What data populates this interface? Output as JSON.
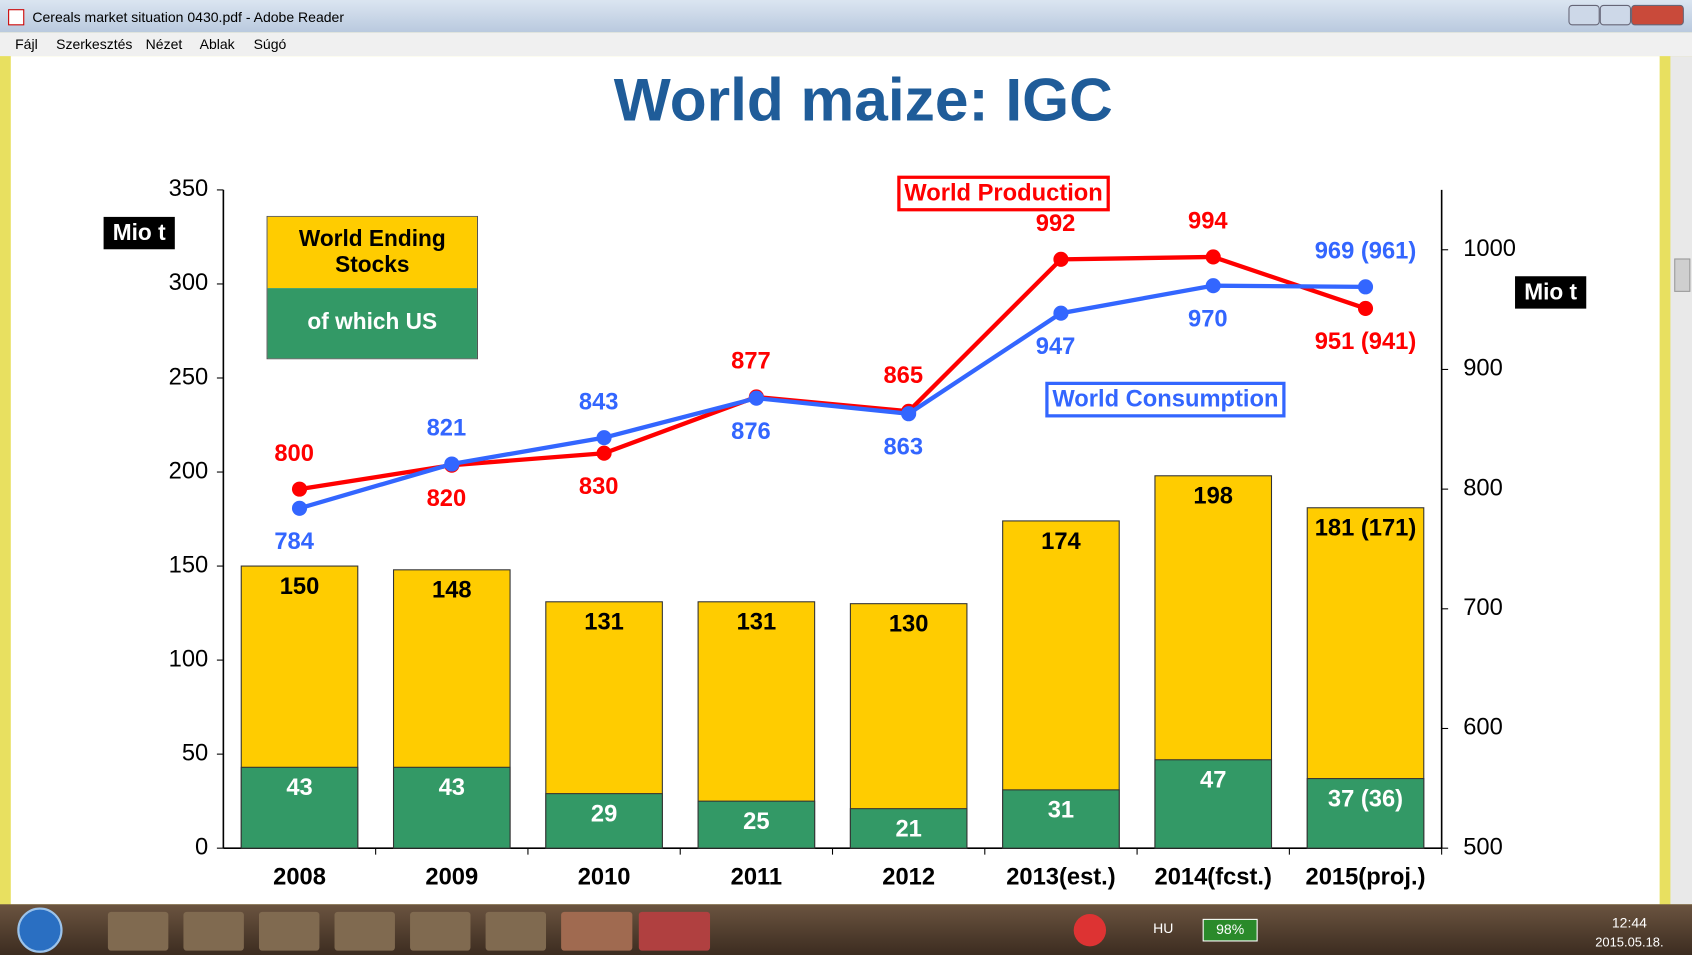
{
  "window": {
    "title": "Cereals market situation 0430.pdf - Adobe Reader",
    "menu": [
      "Fájl",
      "Szerkesztés",
      "Nézet",
      "Ablak",
      "Súgó"
    ]
  },
  "chart_data": {
    "type": "bar",
    "title": "World maize: IGC",
    "ylabel": "Mio t",
    "y2label": "Mio t",
    "categories": [
      "2008",
      "2009",
      "2010",
      "2011",
      "2012",
      "2013(est.)",
      "2014(fcst.)",
      "2015(proj.)"
    ],
    "ylim": [
      0,
      350
    ],
    "yticks": [
      0,
      50,
      100,
      150,
      200,
      250,
      300,
      350
    ],
    "y2lim": [
      500,
      1050
    ],
    "y2ticks": [
      500,
      600,
      700,
      800,
      900,
      1000
    ],
    "series": [
      {
        "name": "World Ending Stocks",
        "color": "#ffcc00",
        "values": [
          150,
          148,
          131,
          131,
          130,
          174,
          198,
          181
        ],
        "value_labels": [
          "150",
          "148",
          "131",
          "131",
          "130",
          "174",
          "198",
          "181 (171)"
        ]
      },
      {
        "name": "of which US",
        "color": "#339966",
        "values": [
          43,
          43,
          29,
          25,
          21,
          31,
          47,
          37
        ],
        "value_labels": [
          "43",
          "43",
          "29",
          "25",
          "21",
          "31",
          "47",
          "37 (36)"
        ]
      },
      {
        "name": "World Production",
        "type": "line",
        "axis": "y2",
        "color": "#ff0000",
        "values": [
          800,
          820,
          830,
          877,
          865,
          992,
          994,
          951
        ],
        "value_labels": [
          "800",
          "820",
          "830",
          "877",
          "865",
          "992",
          "994",
          "951 (941)"
        ]
      },
      {
        "name": "World Consumption",
        "type": "line",
        "axis": "y2",
        "color": "#3366ff",
        "values": [
          784,
          821,
          843,
          876,
          863,
          947,
          970,
          969
        ],
        "value_labels": [
          "784",
          "821",
          "843",
          "876",
          "863",
          "947",
          "970",
          "969 (961)"
        ]
      }
    ]
  },
  "taskbar": {
    "language": "HU",
    "battery": "98%",
    "time": "12:44",
    "date": "2015.05.18."
  }
}
